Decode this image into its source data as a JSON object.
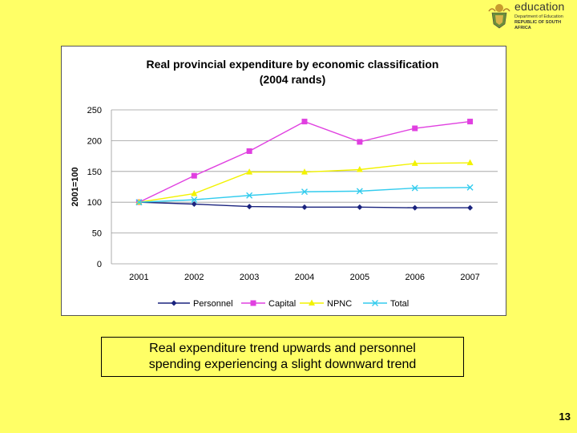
{
  "logo": {
    "word": "education",
    "dept": "Department of Education",
    "country": "REPUBLIC OF SOUTH AFRICA"
  },
  "chart_data": {
    "type": "line",
    "title": "Real provincial expenditure by economic classification",
    "subtitle": "(2004 rands)",
    "xlabel": "",
    "ylabel": "2001=100",
    "categories": [
      "2001",
      "2002",
      "2003",
      "2004",
      "2005",
      "2006",
      "2007"
    ],
    "yticks": [
      "0",
      "50",
      "100",
      "150",
      "200",
      "250"
    ],
    "ylim": [
      0,
      250
    ],
    "grid": "horizontal",
    "legend_position": "bottom",
    "series": [
      {
        "name": "Personnel",
        "color": "#1A237E",
        "marker": "diamond",
        "values": [
          100,
          97,
          93,
          92,
          92,
          91,
          91
        ]
      },
      {
        "name": "Capital",
        "color": "#E040E0",
        "marker": "square",
        "values": [
          100,
          143,
          183,
          231,
          198,
          220,
          231
        ]
      },
      {
        "name": "NPNC",
        "color": "#F2F200",
        "marker": "triangle",
        "values": [
          100,
          114,
          149,
          149,
          153,
          163,
          164
        ]
      },
      {
        "name": "Total",
        "color": "#33CCEE",
        "marker": "x",
        "values": [
          100,
          104,
          111,
          117,
          118,
          123,
          124
        ]
      }
    ]
  },
  "caption": {
    "line1": "Real expenditure trend upwards and personnel",
    "line2": "spending experiencing a slight downward trend"
  },
  "page_number": "13"
}
